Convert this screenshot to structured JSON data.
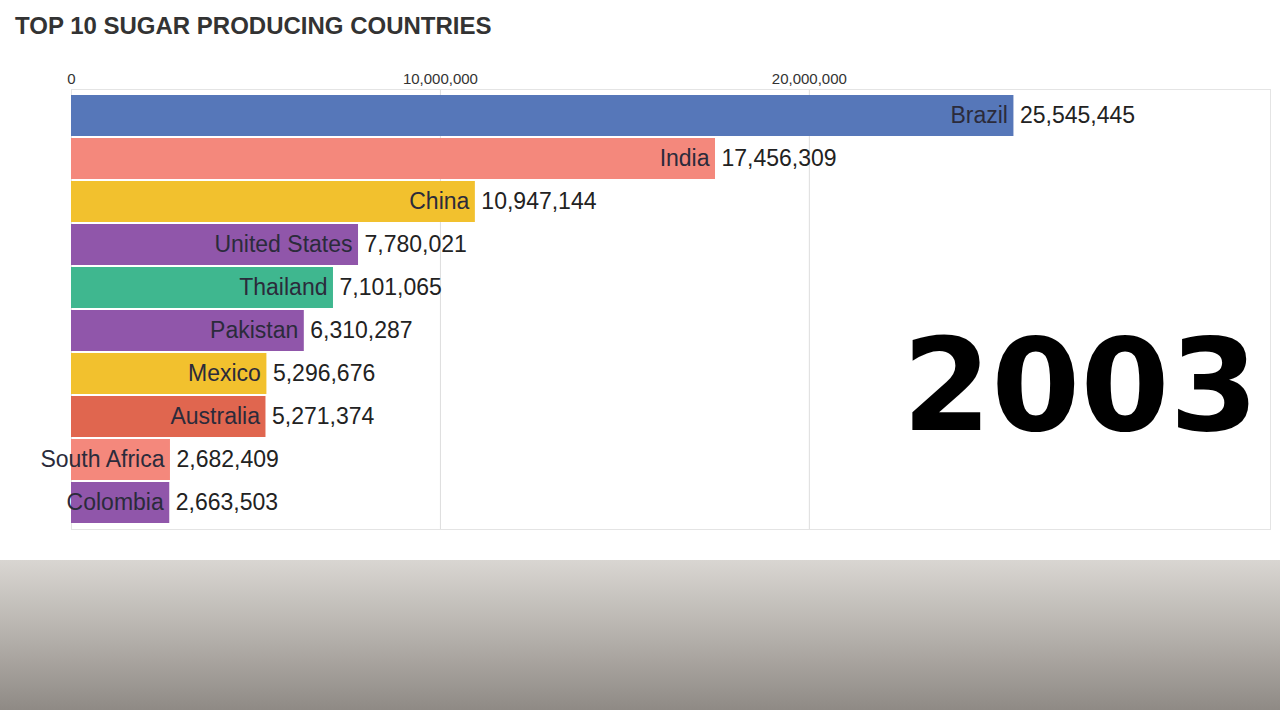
{
  "chart_data": {
    "type": "bar",
    "orientation": "horizontal",
    "title": "TOP 10 SUGAR PRODUCING COUNTRIES",
    "annotation": "2003",
    "categories": [
      "Brazil",
      "India",
      "China",
      "United States",
      "Thailand",
      "Pakistan",
      "Mexico",
      "Australia",
      "South Africa",
      "Colombia"
    ],
    "values": [
      25545445,
      17456309,
      10947144,
      7780021,
      7101065,
      6310287,
      5296676,
      5271374,
      2682409,
      2663503
    ],
    "value_labels": [
      "25,545,445",
      "17,456,309",
      "10,947,144",
      "7,780,021",
      "7,101,065",
      "6,310,287",
      "5,296,676",
      "5,271,374",
      "2,682,409",
      "2,663,503"
    ],
    "colors": [
      "#5677b9",
      "#f4887c",
      "#f2c12e",
      "#9056aa",
      "#3fb78f",
      "#9056aa",
      "#f2c12e",
      "#e0664f",
      "#f4887c",
      "#9056aa"
    ],
    "xlim": [
      0,
      32500000
    ],
    "xticks": [
      0,
      {
        "value": 10000000,
        "label": "10,000,000"
      },
      {
        "value": 20000000,
        "label": "20,000,000"
      }
    ],
    "grid": true,
    "data_labels": true,
    "tick_labels": "x"
  }
}
